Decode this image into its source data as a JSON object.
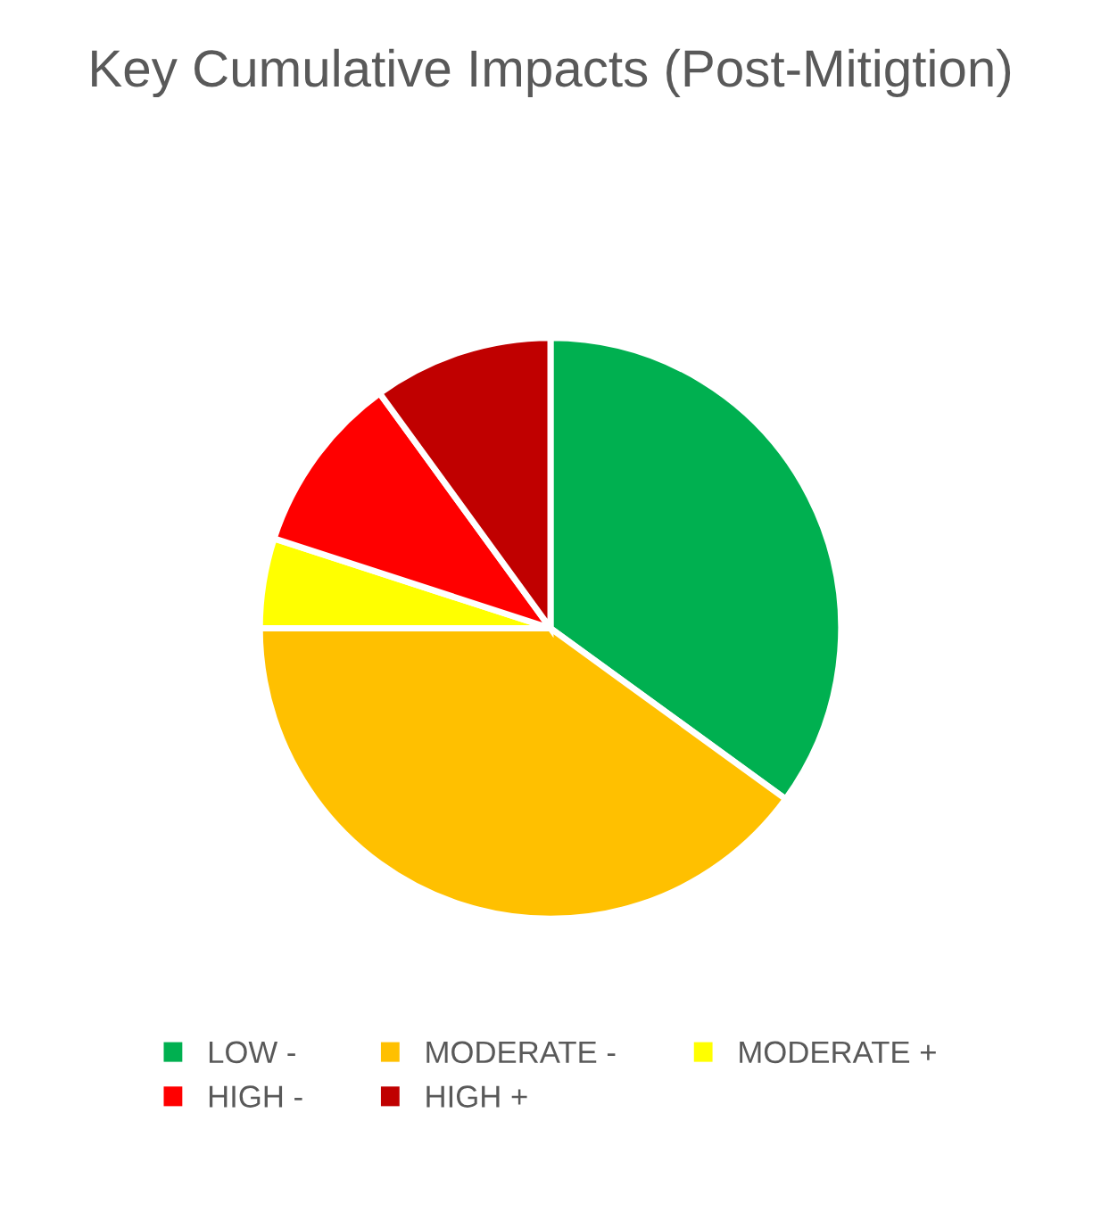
{
  "chart_data": {
    "type": "pie",
    "title": "Key Cumulative Impacts (Post-Mitigtion)",
    "categories": [
      "LOW -",
      "MODERATE -",
      "MODERATE +",
      "HIGH -",
      "HIGH +"
    ],
    "values": [
      35,
      40,
      5,
      10,
      10
    ],
    "colors": [
      "#00b050",
      "#ffc000",
      "#ffff00",
      "#ff0000",
      "#c00000"
    ],
    "legend": "bottom"
  }
}
